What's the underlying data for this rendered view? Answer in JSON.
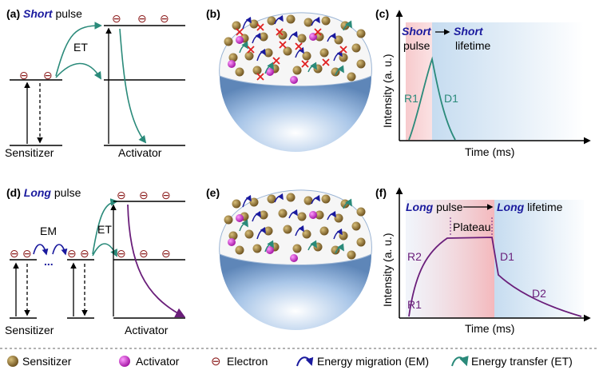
{
  "panels": {
    "a": {
      "tag": "(a)",
      "emph": "Short",
      "rest": "pulse",
      "et": "ET",
      "sensitizer": "Sensitizer",
      "activator": "Activator"
    },
    "b": {
      "tag": "(b)"
    },
    "c": {
      "tag": "(c)",
      "box_emph1": "Short",
      "box_rest1": "pulse",
      "box_emph2": "Short",
      "box_rest2": "lifetime",
      "r1": "R1",
      "d1": "D1",
      "ylabel": "Intensity (a. u.)",
      "xlabel": "Time (ms)"
    },
    "d": {
      "tag": "(d)",
      "emph": "Long",
      "rest": "pulse",
      "em": "EM",
      "et": "ET",
      "sensitizer": "Sensitizer",
      "activator": "Activator"
    },
    "e": {
      "tag": "(e)"
    },
    "f": {
      "tag": "(f)",
      "emph1": "Long",
      "rest1": "pulse",
      "emph2": "Long",
      "rest2": "lifetime",
      "plateau": "Plateau",
      "r1": "R1",
      "r2": "R2",
      "d1": "D1",
      "d2": "D2",
      "ylabel": "Intensity (a. u.)",
      "xlabel": "Time (ms)"
    }
  },
  "legend": {
    "sensitizer": "Sensitizer",
    "activator": "Activator",
    "electron": "Electron",
    "em": "Energy migration (EM)",
    "et": "Energy transfer (ET)"
  },
  "electron_symbol": "⊖",
  "colors": {
    "emphasis": "#1a1a9e",
    "transfer": "#2a8a7a",
    "decay": "#6a1e7a",
    "activator": "#c020c0",
    "sensitizer": "#8a6a2a",
    "sphere": "#8ab0dc",
    "pulse": "#f4b8bc",
    "lifetime": "#cfe0f0"
  }
}
